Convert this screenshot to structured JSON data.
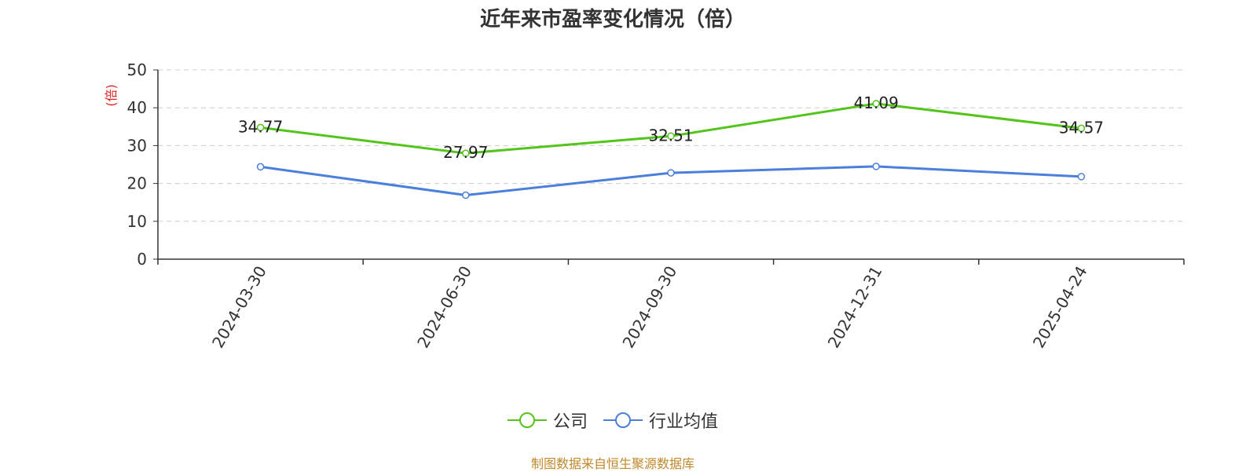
{
  "chart_data": {
    "type": "line",
    "title": "近年来市盈率变化情况（倍）",
    "ylabel": "(倍)",
    "xlabel": "",
    "categories": [
      "2024-03-30",
      "2024-06-30",
      "2024-09-30",
      "2024-12-31",
      "2025-04-24"
    ],
    "ylim": [
      0,
      50
    ],
    "yticks": [
      0,
      10,
      20,
      30,
      40,
      50
    ],
    "grid": true,
    "legend_position": "bottom",
    "series": [
      {
        "name": "公司",
        "color": "#52c41a",
        "values": [
          34.77,
          27.97,
          32.51,
          41.09,
          34.57
        ],
        "show_labels": true
      },
      {
        "name": "行业均值",
        "color": "#4a7fdc",
        "values": [
          24.4,
          16.9,
          22.8,
          24.5,
          21.8
        ],
        "show_labels": false
      }
    ]
  },
  "footer": {
    "source": "制图数据来自恒生聚源数据库"
  },
  "colors": {
    "axis": "#333333",
    "grid": "#cccccc",
    "ylabel": "#e02020",
    "source": "#c0882a"
  }
}
